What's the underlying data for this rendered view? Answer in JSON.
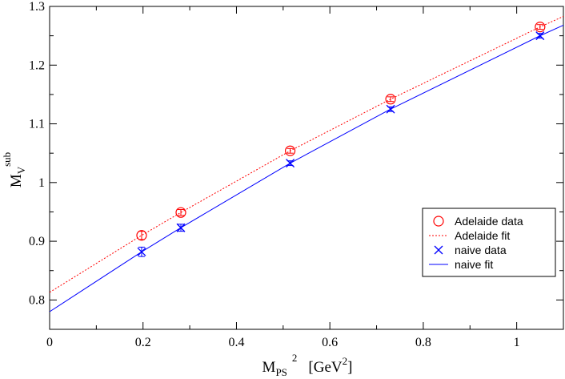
{
  "chart_data": {
    "type": "scatter",
    "x_axis": {
      "label_main": "M",
      "label_sub": "PS",
      "label_sup": "2",
      "label_unit": "[GeV",
      "label_unit_sup": "2",
      "label_unit_close": "]",
      "range": [
        0,
        1.1
      ],
      "ticks": [
        0,
        0.2,
        0.4,
        0.6,
        0.8,
        1
      ],
      "tick_labels": [
        "0",
        "0.2",
        "0.4",
        "0.6",
        "0.8",
        "1"
      ]
    },
    "y_axis": {
      "label_main": "M",
      "label_sub": "V",
      "label_sup": "sub",
      "range": [
        0.75,
        1.3
      ],
      "ticks": [
        0.8,
        0.9,
        1.0,
        1.1,
        1.2,
        1.3
      ],
      "tick_labels": [
        "0.8",
        "0.9",
        "1",
        "1.1",
        "1.2",
        "1.3"
      ]
    },
    "grid": false,
    "legend_position": "lower-right",
    "series": [
      {
        "name": "Adelaide data",
        "kind": "points",
        "marker": "circle",
        "color": "#ff0000",
        "x": [
          0.197,
          0.281,
          0.515,
          0.73,
          1.05
        ],
        "y": [
          0.91,
          0.949,
          1.054,
          1.142,
          1.265
        ],
        "yerr": [
          0.007,
          0.005,
          0.004,
          0.004,
          0.004
        ]
      },
      {
        "name": "Adelaide fit",
        "kind": "line",
        "style": "dotted",
        "color": "#ff0000",
        "x": [
          0,
          0.197,
          0.281,
          0.515,
          0.73,
          1.05,
          1.1
        ],
        "y": [
          0.813,
          0.91,
          0.949,
          1.054,
          1.142,
          1.265,
          1.283
        ]
      },
      {
        "name": "naive data",
        "kind": "points",
        "marker": "x",
        "color": "#0000ff",
        "x": [
          0.197,
          0.281,
          0.515,
          0.73,
          1.05
        ],
        "y": [
          0.882,
          0.923,
          1.033,
          1.125,
          1.25
        ],
        "yerr": [
          0.008,
          0.006,
          0.004,
          0.004,
          0.004
        ]
      },
      {
        "name": "naive fit",
        "kind": "line",
        "style": "solid",
        "color": "#0000ff",
        "x": [
          0,
          0.197,
          0.281,
          0.515,
          0.73,
          1.05,
          1.1
        ],
        "y": [
          0.78,
          0.882,
          0.923,
          1.033,
          1.125,
          1.25,
          1.268
        ]
      }
    ]
  }
}
